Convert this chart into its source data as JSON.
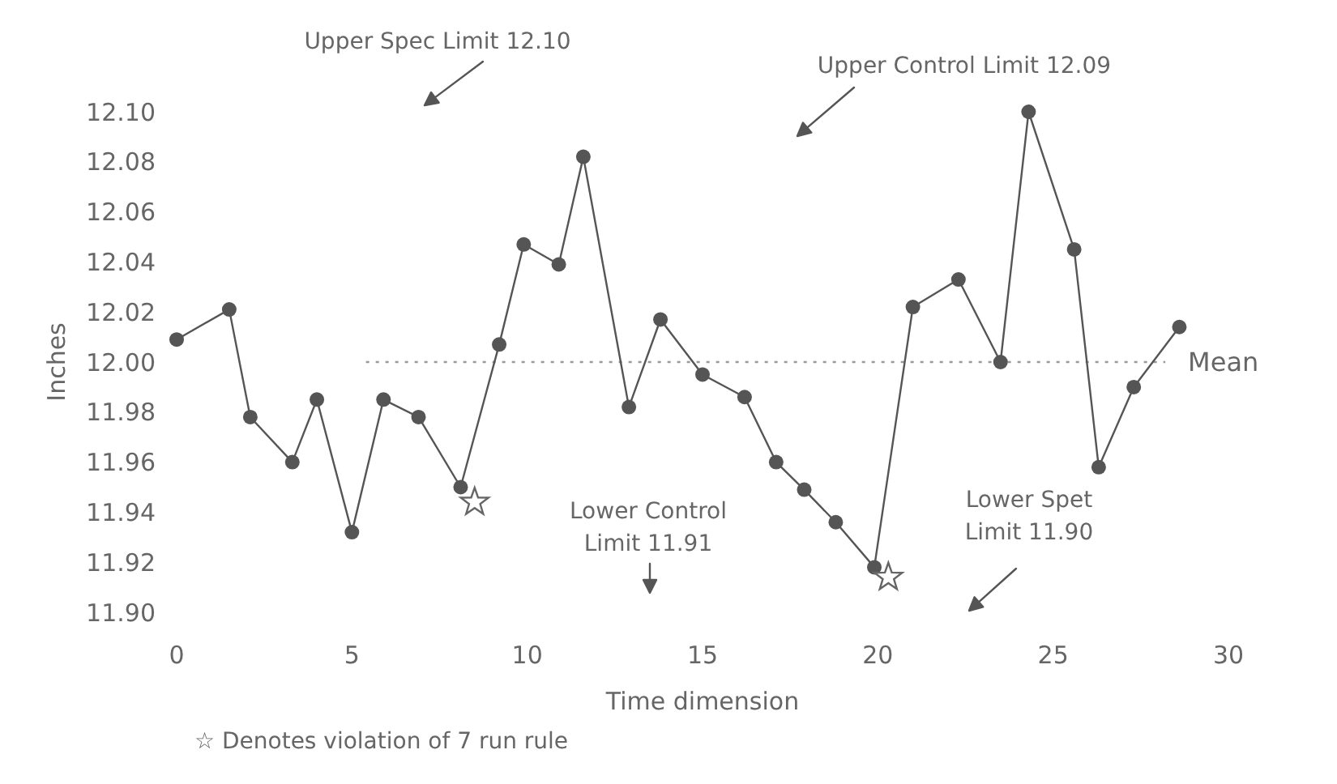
{
  "chart_data": {
    "type": "line",
    "xlabel": "Time dimension",
    "ylabel": "Inches",
    "xlim": [
      0,
      30
    ],
    "xticks": [
      0,
      5,
      10,
      15,
      20,
      25,
      30
    ],
    "ylim": [
      11.9,
      12.1
    ],
    "yticks": [
      {
        "value": 12.1,
        "label": "12.10"
      },
      {
        "value": 12.08,
        "label": "12.08"
      },
      {
        "value": 12.06,
        "label": "12.06"
      },
      {
        "value": 12.04,
        "label": "12.04"
      },
      {
        "value": 12.02,
        "label": "12.02"
      },
      {
        "value": 12.0,
        "label": "12.00"
      },
      {
        "value": 11.98,
        "label": "11.98"
      },
      {
        "value": 11.96,
        "label": "11.96"
      },
      {
        "value": 11.94,
        "label": "11.94"
      },
      {
        "value": 11.92,
        "label": "11.92"
      },
      {
        "value": 11.9,
        "label": "11.90"
      }
    ],
    "series": [
      {
        "color": "#555555",
        "marker": "circle",
        "x": [
          0,
          1.5,
          2.1,
          3.3,
          4.0,
          5.0,
          5.9,
          6.9,
          8.1,
          9.2,
          9.9,
          10.9,
          11.6,
          12.9,
          13.8,
          15.0,
          16.2,
          17.1,
          17.9,
          18.8,
          19.9,
          21.0,
          22.3,
          23.5,
          24.3,
          25.6,
          26.3,
          27.3,
          28.6
        ],
        "values": [
          12.009,
          12.021,
          11.978,
          11.96,
          11.985,
          11.932,
          11.985,
          11.978,
          11.95,
          12.007,
          12.047,
          12.039,
          12.082,
          11.982,
          12.017,
          11.995,
          11.986,
          11.96,
          11.949,
          11.936,
          11.918,
          12.022,
          12.033,
          12.0,
          12.1,
          12.045,
          11.958,
          11.99,
          12.014
        ]
      },
      {
        "type": "scatter",
        "color": "#666666",
        "marker": "star",
        "x": [
          8.5,
          20.3
        ],
        "values": [
          11.944,
          11.914
        ]
      }
    ],
    "ref_lines": [
      {
        "axis": "y",
        "value": 12.0,
        "label": "Mean",
        "color": "#999999",
        "line_style": "dotted"
      }
    ],
    "annotations": [
      "Upper Spec Limit 12.10",
      "Upper Control Limit 12.09",
      "Lower Control Limit 11.91",
      "Lower Spet Limit 11.90",
      "☆ Denotes violation of 7 run rule"
    ],
    "grid": false
  }
}
